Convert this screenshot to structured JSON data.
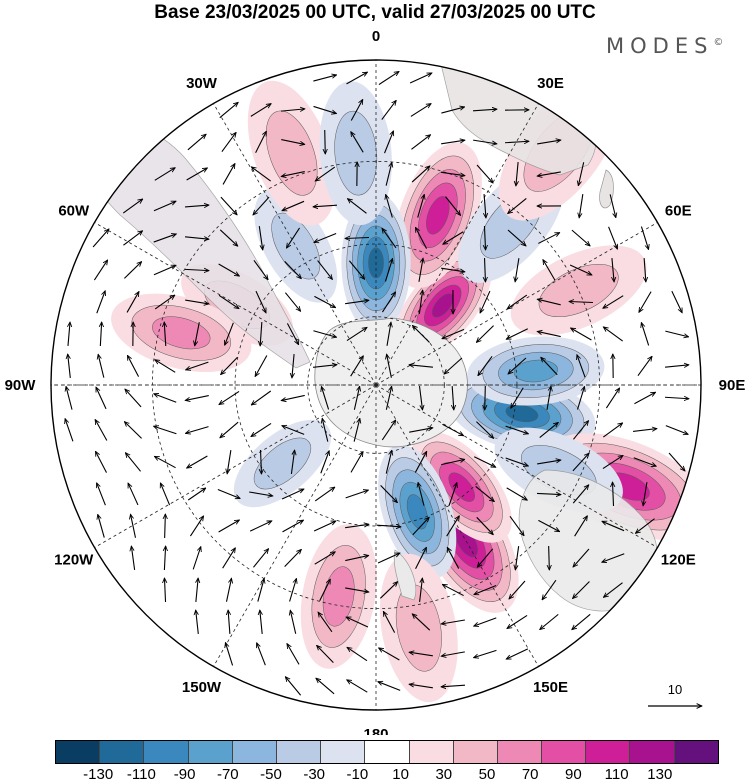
{
  "title": "Base 23/03/2025 00 UTC, valid 27/03/2025 00 UTC",
  "logo": "MODES",
  "logo_mark": "©",
  "projection": "south-polar-stereographic",
  "longitude_labels": [
    "0",
    "30E",
    "60E",
    "90E",
    "120E",
    "150E",
    "180",
    "150W",
    "120W",
    "90W",
    "60W",
    "30W"
  ],
  "reference_vector": {
    "label": "10"
  },
  "colorbar": {
    "colors": [
      "#0a3d62",
      "#1f6a99",
      "#3a88bd",
      "#5aa2cd",
      "#8cb6dd",
      "#b9cbe5",
      "#dde2f0",
      "#ffffff",
      "#f9dde2",
      "#f3b8c6",
      "#ee89b5",
      "#e34fa4",
      "#cf1f98",
      "#a9128e",
      "#64107d"
    ],
    "labels": [
      "-130",
      "-110",
      "-90",
      "-70",
      "-50",
      "-30",
      "-10",
      "10",
      "30",
      "50",
      "70",
      "90",
      "110",
      "130"
    ]
  },
  "anomalies": [
    {
      "lon": 150,
      "lat": -40,
      "value": 115
    },
    {
      "lon": 140,
      "lat": -52,
      "value": 80
    },
    {
      "lon": 101,
      "lat": -48,
      "value": -115
    },
    {
      "lon": 40,
      "lat": -60,
      "value": 100
    },
    {
      "lon": 20,
      "lat": -40,
      "value": 95
    },
    {
      "lon": 0,
      "lat": -55,
      "value": -110
    },
    {
      "lon": -30,
      "lat": -45,
      "value": -25
    },
    {
      "lon": -60,
      "lat": -45,
      "value": 20
    },
    {
      "lon": -75,
      "lat": -35,
      "value": 45
    },
    {
      "lon": -130,
      "lat": -55,
      "value": -35
    },
    {
      "lon": -170,
      "lat": -32,
      "value": 40
    },
    {
      "lon": 162,
      "lat": -52,
      "value": -95
    },
    {
      "lon": 112,
      "lat": -20,
      "value": 95
    },
    {
      "lon": 85,
      "lat": -45,
      "value": -65
    },
    {
      "lon": 40,
      "lat": -33,
      "value": -30
    },
    {
      "lon": 115,
      "lat": -35,
      "value": -25
    },
    {
      "lon": 65,
      "lat": -30,
      "value": 30
    },
    {
      "lon": 38,
      "lat": -15,
      "value": 20
    },
    {
      "lon": -20,
      "lat": -25,
      "value": 25
    },
    {
      "lon": 170,
      "lat": -25,
      "value": 20
    },
    {
      "lon": -5,
      "lat": -28,
      "value": -15
    }
  ]
}
